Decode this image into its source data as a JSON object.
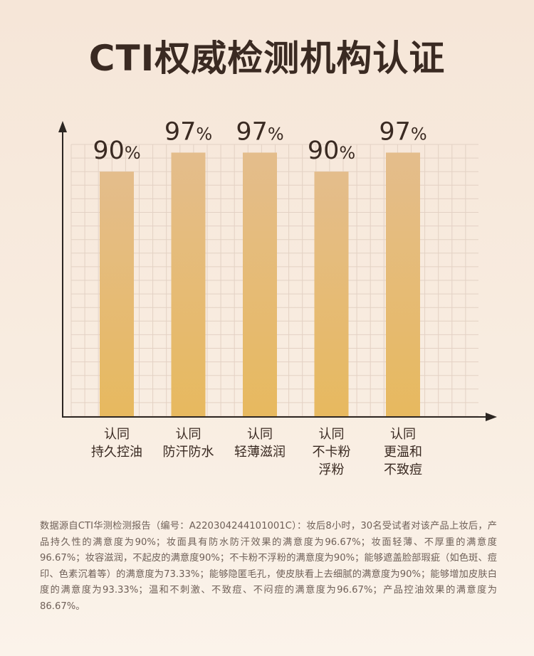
{
  "title": "CTI权威检测机构认证",
  "chart_data": {
    "type": "bar",
    "categories": [
      [
        "认同",
        "持久控油"
      ],
      [
        "认同",
        "防汗防水"
      ],
      [
        "认同",
        "轻薄滋润"
      ],
      [
        "认同",
        "不卡粉",
        "浮粉"
      ],
      [
        "认同",
        "更温和",
        "不致痘"
      ]
    ],
    "values": [
      90,
      97,
      97,
      90,
      97
    ],
    "value_labels": [
      "90",
      "97",
      "97",
      "90",
      "97"
    ],
    "value_suffix": "%",
    "ylim": [
      0,
      100
    ],
    "grid": true,
    "bar_gradient": [
      "#e4bd8c",
      "#e7b95f"
    ]
  },
  "footnote": "数据源自CTI华测检测报告（编号：A220304244101001C）：妆后8小时，30名受试者对该产品上妆后，产品持久性的满意度为90%；妆面具有防水防汗效果的满意度为96.67%；妆面轻薄、不厚重的满意度96.67%；妆容滋润，不起皮的满意度90%；不卡粉不浮粉的满意度为90%；能够遮盖脸部瑕疵（如色斑、痘印、色素沉着等）的满意度为73.33%；能够隐匿毛孔，使皮肤看上去细腻的满意度为90%；能够增加皮肤白度的满意度为93.33%；温和不刺激、不致痘、不闷痘的满意度为96.67%；产品控油效果的满意度为86.67%。"
}
